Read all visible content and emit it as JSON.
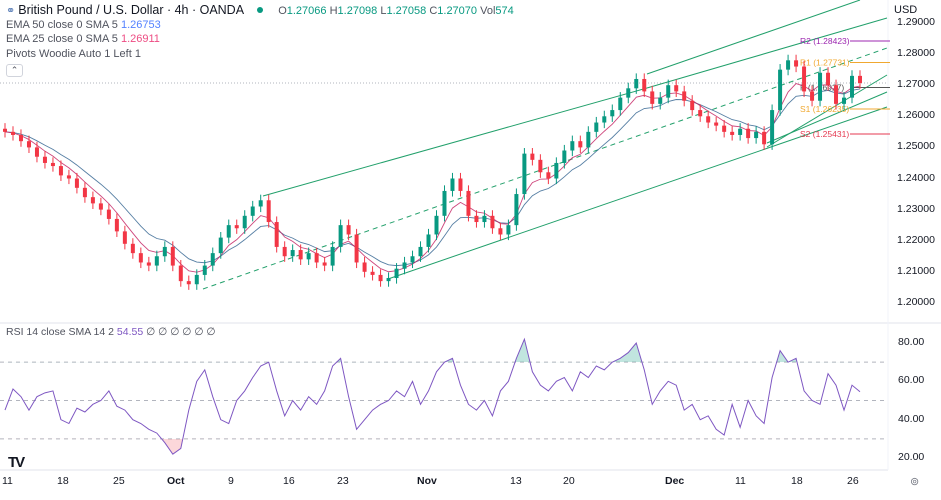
{
  "header": {
    "title": "British Pound / U.S. Dollar · 4h · OANDA",
    "ohlc": {
      "o_label": "O",
      "o": "1.27066",
      "h_label": "H",
      "h": "1.27098",
      "l_label": "L",
      "l": "1.27058",
      "c_label": "C",
      "c": "1.27070",
      "vol_label": "Vol",
      "vol": "574"
    },
    "indicators": [
      {
        "label": "EMA 50 close 0 SMA 5",
        "value": "1.26753"
      },
      {
        "label": "EMA 25 close 0 SMA 5",
        "value": "1.26911"
      },
      {
        "label": "Pivots Woodie Auto 1 Left 1",
        "value": ""
      }
    ],
    "collapse_icon": "chevron-up-icon"
  },
  "price_axis": {
    "currency": "USD",
    "ticks": [
      "1.29000",
      "1.28000",
      "1.27000",
      "1.26000",
      "1.25000",
      "1.24000",
      "1.23000",
      "1.22000",
      "1.21000",
      "1.20000"
    ]
  },
  "rsi_axis": {
    "ticks": [
      "80.00",
      "60.00",
      "40.00",
      "20.00"
    ]
  },
  "rsi_legend": {
    "label": "RSI 14 close SMA 14 2",
    "value": "54.55",
    "na": "∅ ∅ ∅ ∅ ∅ ∅"
  },
  "time_axis": {
    "labels": [
      "11",
      "18",
      "25",
      "Oct",
      "9",
      "16",
      "23",
      "Nov",
      "13",
      "20",
      "Dec",
      "11",
      "18",
      "26"
    ]
  },
  "pivots": [
    {
      "label": "R2 (1.28423)",
      "value": 1.28423,
      "color": "#9c27b0"
    },
    {
      "label": "R1 (1.27731)",
      "value": 1.27731,
      "color": "#f0a830"
    },
    {
      "label": "P (1.26927)",
      "value": 1.26927,
      "color": "#555555"
    },
    {
      "label": "S1 (1.26235)",
      "value": 1.26235,
      "color": "#f0a830"
    },
    {
      "label": "S2 (1.25431)",
      "value": 1.25431,
      "color": "#e53950"
    }
  ],
  "colors": {
    "up": "#089981",
    "down": "#f23645",
    "ema50": "#2a5e8c",
    "ema25": "#c2185b",
    "rsi": "#7e57c2",
    "channel": "#22a06b"
  },
  "logo": "TV",
  "settings_icon": "gear-icon",
  "chart_data": {
    "type": "candlestick",
    "symbol": "GBPUSD",
    "interval": "4h",
    "ylim": [
      1.2,
      1.29
    ],
    "close": [
      1.255,
      1.254,
      1.252,
      1.25,
      1.247,
      1.245,
      1.244,
      1.241,
      1.24,
      1.237,
      1.234,
      1.232,
      1.23,
      1.227,
      1.223,
      1.219,
      1.216,
      1.213,
      1.212,
      1.215,
      1.218,
      1.212,
      1.207,
      1.206,
      1.209,
      1.212,
      1.216,
      1.221,
      1.225,
      1.224,
      1.228,
      1.231,
      1.233,
      1.226,
      1.218,
      1.215,
      1.217,
      1.214,
      1.216,
      1.213,
      1.212,
      1.218,
      1.225,
      1.222,
      1.213,
      1.21,
      1.209,
      1.207,
      1.208,
      1.211,
      1.213,
      1.215,
      1.218,
      1.222,
      1.228,
      1.236,
      1.24,
      1.236,
      1.228,
      1.226,
      1.228,
      1.224,
      1.222,
      1.225,
      1.235,
      1.248,
      1.246,
      1.242,
      1.24,
      1.245,
      1.249,
      1.252,
      1.25,
      1.255,
      1.258,
      1.26,
      1.262,
      1.266,
      1.269,
      1.272,
      1.268,
      1.264,
      1.266,
      1.27,
      1.268,
      1.265,
      1.262,
      1.26,
      1.258,
      1.257,
      1.255,
      1.254,
      1.256,
      1.253,
      1.255,
      1.251,
      1.262,
      1.275,
      1.278,
      1.276,
      1.268,
      1.265,
      1.274,
      1.27,
      1.264,
      1.266,
      1.273,
      1.2707
    ],
    "rsi": {
      "ylim": [
        10,
        90
      ],
      "levels": [
        70,
        50,
        30
      ],
      "values": [
        45,
        56,
        52,
        45,
        52,
        54,
        55,
        40,
        38,
        46,
        44,
        48,
        50,
        55,
        47,
        45,
        40,
        38,
        35,
        33,
        28,
        22,
        25,
        45,
        60,
        66,
        52,
        40,
        38,
        50,
        55,
        62,
        68,
        70,
        55,
        42,
        50,
        45,
        52,
        48,
        55,
        68,
        72,
        52,
        35,
        40,
        45,
        48,
        50,
        55,
        52,
        60,
        48,
        55,
        65,
        70,
        72,
        58,
        48,
        45,
        50,
        42,
        55,
        60,
        72,
        82,
        65,
        58,
        55,
        60,
        62,
        55,
        65,
        62,
        68,
        66,
        70,
        72,
        75,
        80,
        66,
        48,
        55,
        60,
        58,
        45,
        48,
        40,
        42,
        35,
        32,
        48,
        36,
        50,
        42,
        38,
        62,
        76,
        70,
        72,
        55,
        50,
        48,
        64,
        58,
        45,
        58,
        54.55
      ]
    }
  }
}
